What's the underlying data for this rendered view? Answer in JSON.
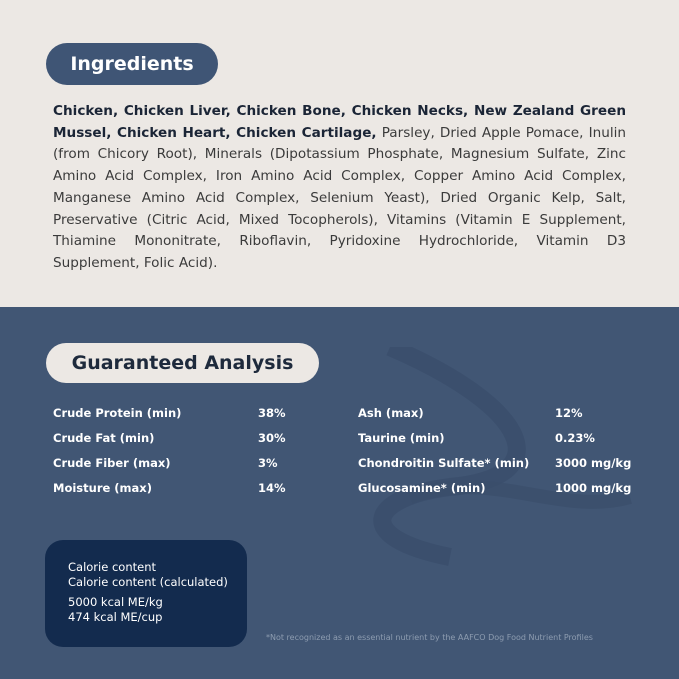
{
  "ingredients": {
    "title": "Ingredients",
    "bold_text": "Chicken, Chicken Liver, Chicken Bone, Chicken Necks, New Zealand Green Mussel, Chicken Heart, Chicken Cartilage,",
    "regular_text": " Parsley, Dried Apple Pomace, Inulin (from Chicory Root), Minerals (Dipotassium Phosphate, Magnesium Sulfate, Zinc Amino Acid Complex, Iron Amino Acid Complex, Copper Amino Acid Complex, Manganese Amino Acid Complex, Selenium Yeast), Dried Organic Kelp, Salt, Preservative (Citric Acid, Mixed Tocopherols), Vitamins (Vitamin E Supplement, Thiamine Mononitrate, Riboflavin, Pyridoxine Hydrochloride, Vitamin D3 Supplement, Folic Acid)."
  },
  "analysis": {
    "title": "Guaranteed Analysis",
    "left": [
      {
        "name": "Crude Protein (min)",
        "value": "38%"
      },
      {
        "name": "Crude Fat (min)",
        "value": "30%"
      },
      {
        "name": "Crude Fiber (max)",
        "value": "3%"
      },
      {
        "name": "Moisture (max)",
        "value": "14%"
      }
    ],
    "right": [
      {
        "name": "Ash (max)",
        "value": "12%"
      },
      {
        "name": "Taurine (min)",
        "value": "0.23%"
      },
      {
        "name": "Chondroitin Sulfate* (min)",
        "value": "3000 mg/kg"
      },
      {
        "name": "Glucosamine* (min)",
        "value": "1000 mg/kg"
      }
    ]
  },
  "calorie": {
    "line1": "Calorie content",
    "line2": "Calorie content (calculated)",
    "kg": "5000 kcal ME/kg",
    "cup": "474 kcal ME/cup"
  },
  "footnote": "*Not recognized as an essential nutrient by the AAFCO Dog Food Nutrient Profiles",
  "colors": {
    "top_bg": "#ece8e4",
    "bottom_bg": "#415674",
    "calorie_bg": "#132b4e"
  }
}
